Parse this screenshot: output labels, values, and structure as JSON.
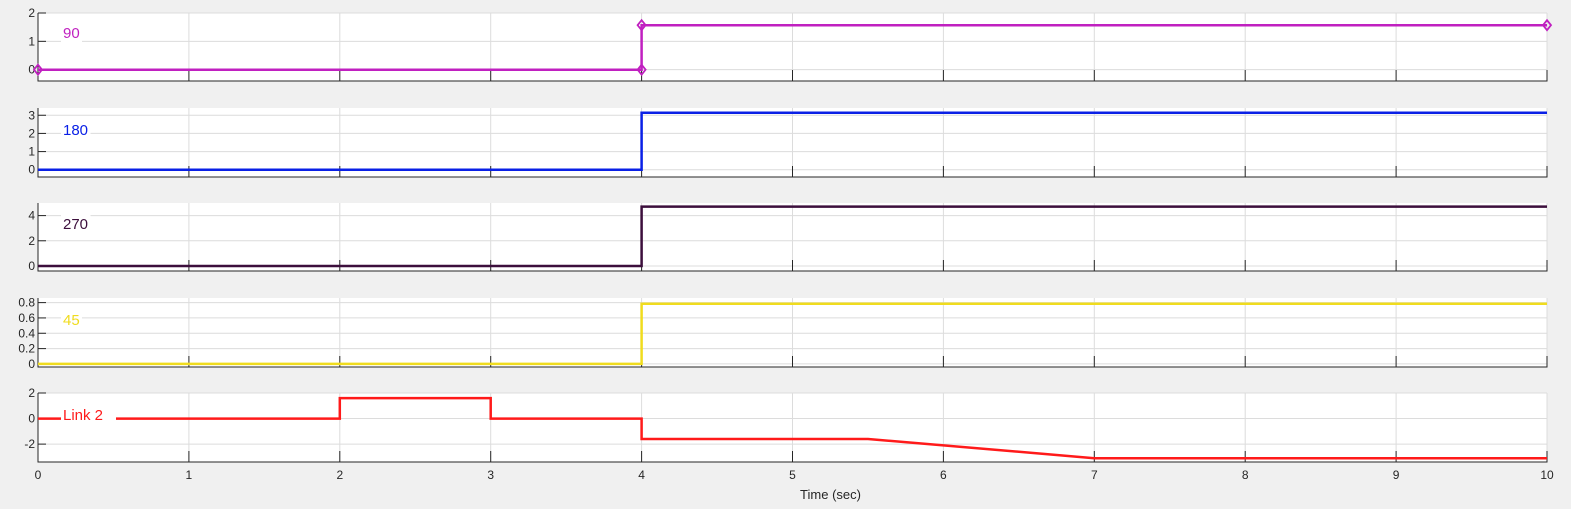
{
  "chart_data": {
    "type": "line",
    "xlabel": "Time (sec)",
    "xlim": [
      0,
      10
    ],
    "x_ticks": [
      0,
      1,
      2,
      3,
      4,
      5,
      6,
      7,
      8,
      9,
      10
    ],
    "x_tick_labels": [
      "0",
      "1",
      "2",
      "3",
      "4",
      "5",
      "6",
      "7",
      "8",
      "9",
      "10"
    ],
    "grid": true,
    "series": [
      {
        "name": "90",
        "color": "#c020c0",
        "marker": "diamond",
        "ylim": [
          -0.4,
          2
        ],
        "y_ticks": [
          0,
          1,
          2
        ],
        "y_tick_labels": [
          "0",
          "1",
          "2"
        ],
        "x": [
          0,
          4,
          4,
          10
        ],
        "y": [
          0,
          0,
          1.571,
          1.571
        ]
      },
      {
        "name": "180",
        "color": "#0a20e6",
        "ylim": [
          -0.4,
          3.4
        ],
        "y_ticks": [
          0,
          1,
          2,
          3
        ],
        "y_tick_labels": [
          "0",
          "1",
          "2",
          "3"
        ],
        "x": [
          0,
          4,
          4,
          10
        ],
        "y": [
          0,
          0,
          3.142,
          3.142
        ]
      },
      {
        "name": "270",
        "color": "#3c0f3c",
        "ylim": [
          -0.4,
          5
        ],
        "y_ticks": [
          0,
          2,
          4
        ],
        "y_tick_labels": [
          "0",
          "2",
          "4"
        ],
        "x": [
          0,
          4,
          4,
          10
        ],
        "y": [
          0,
          0,
          4.712,
          4.712
        ]
      },
      {
        "name": "45",
        "color": "#f0dc1e",
        "ylim": [
          -0.04,
          0.86
        ],
        "y_ticks": [
          0,
          0.2,
          0.4,
          0.6,
          0.8
        ],
        "y_tick_labels": [
          "0",
          "0.2",
          "0.4",
          "0.6",
          "0.8"
        ],
        "x": [
          0,
          4,
          4,
          10
        ],
        "y": [
          0,
          0,
          0.785,
          0.785
        ]
      },
      {
        "name": "Link 2",
        "color": "#ff1a1a",
        "ylim": [
          -3.4,
          2
        ],
        "y_ticks": [
          -2,
          0,
          2
        ],
        "y_tick_labels": [
          "-2",
          "0",
          "2"
        ],
        "x": [
          0,
          2,
          2,
          3,
          3,
          4,
          4,
          5.5,
          7,
          10
        ],
        "y": [
          0,
          0,
          1.6,
          1.6,
          0,
          0,
          -1.6,
          -1.6,
          -3.1,
          -3.1
        ]
      }
    ]
  }
}
